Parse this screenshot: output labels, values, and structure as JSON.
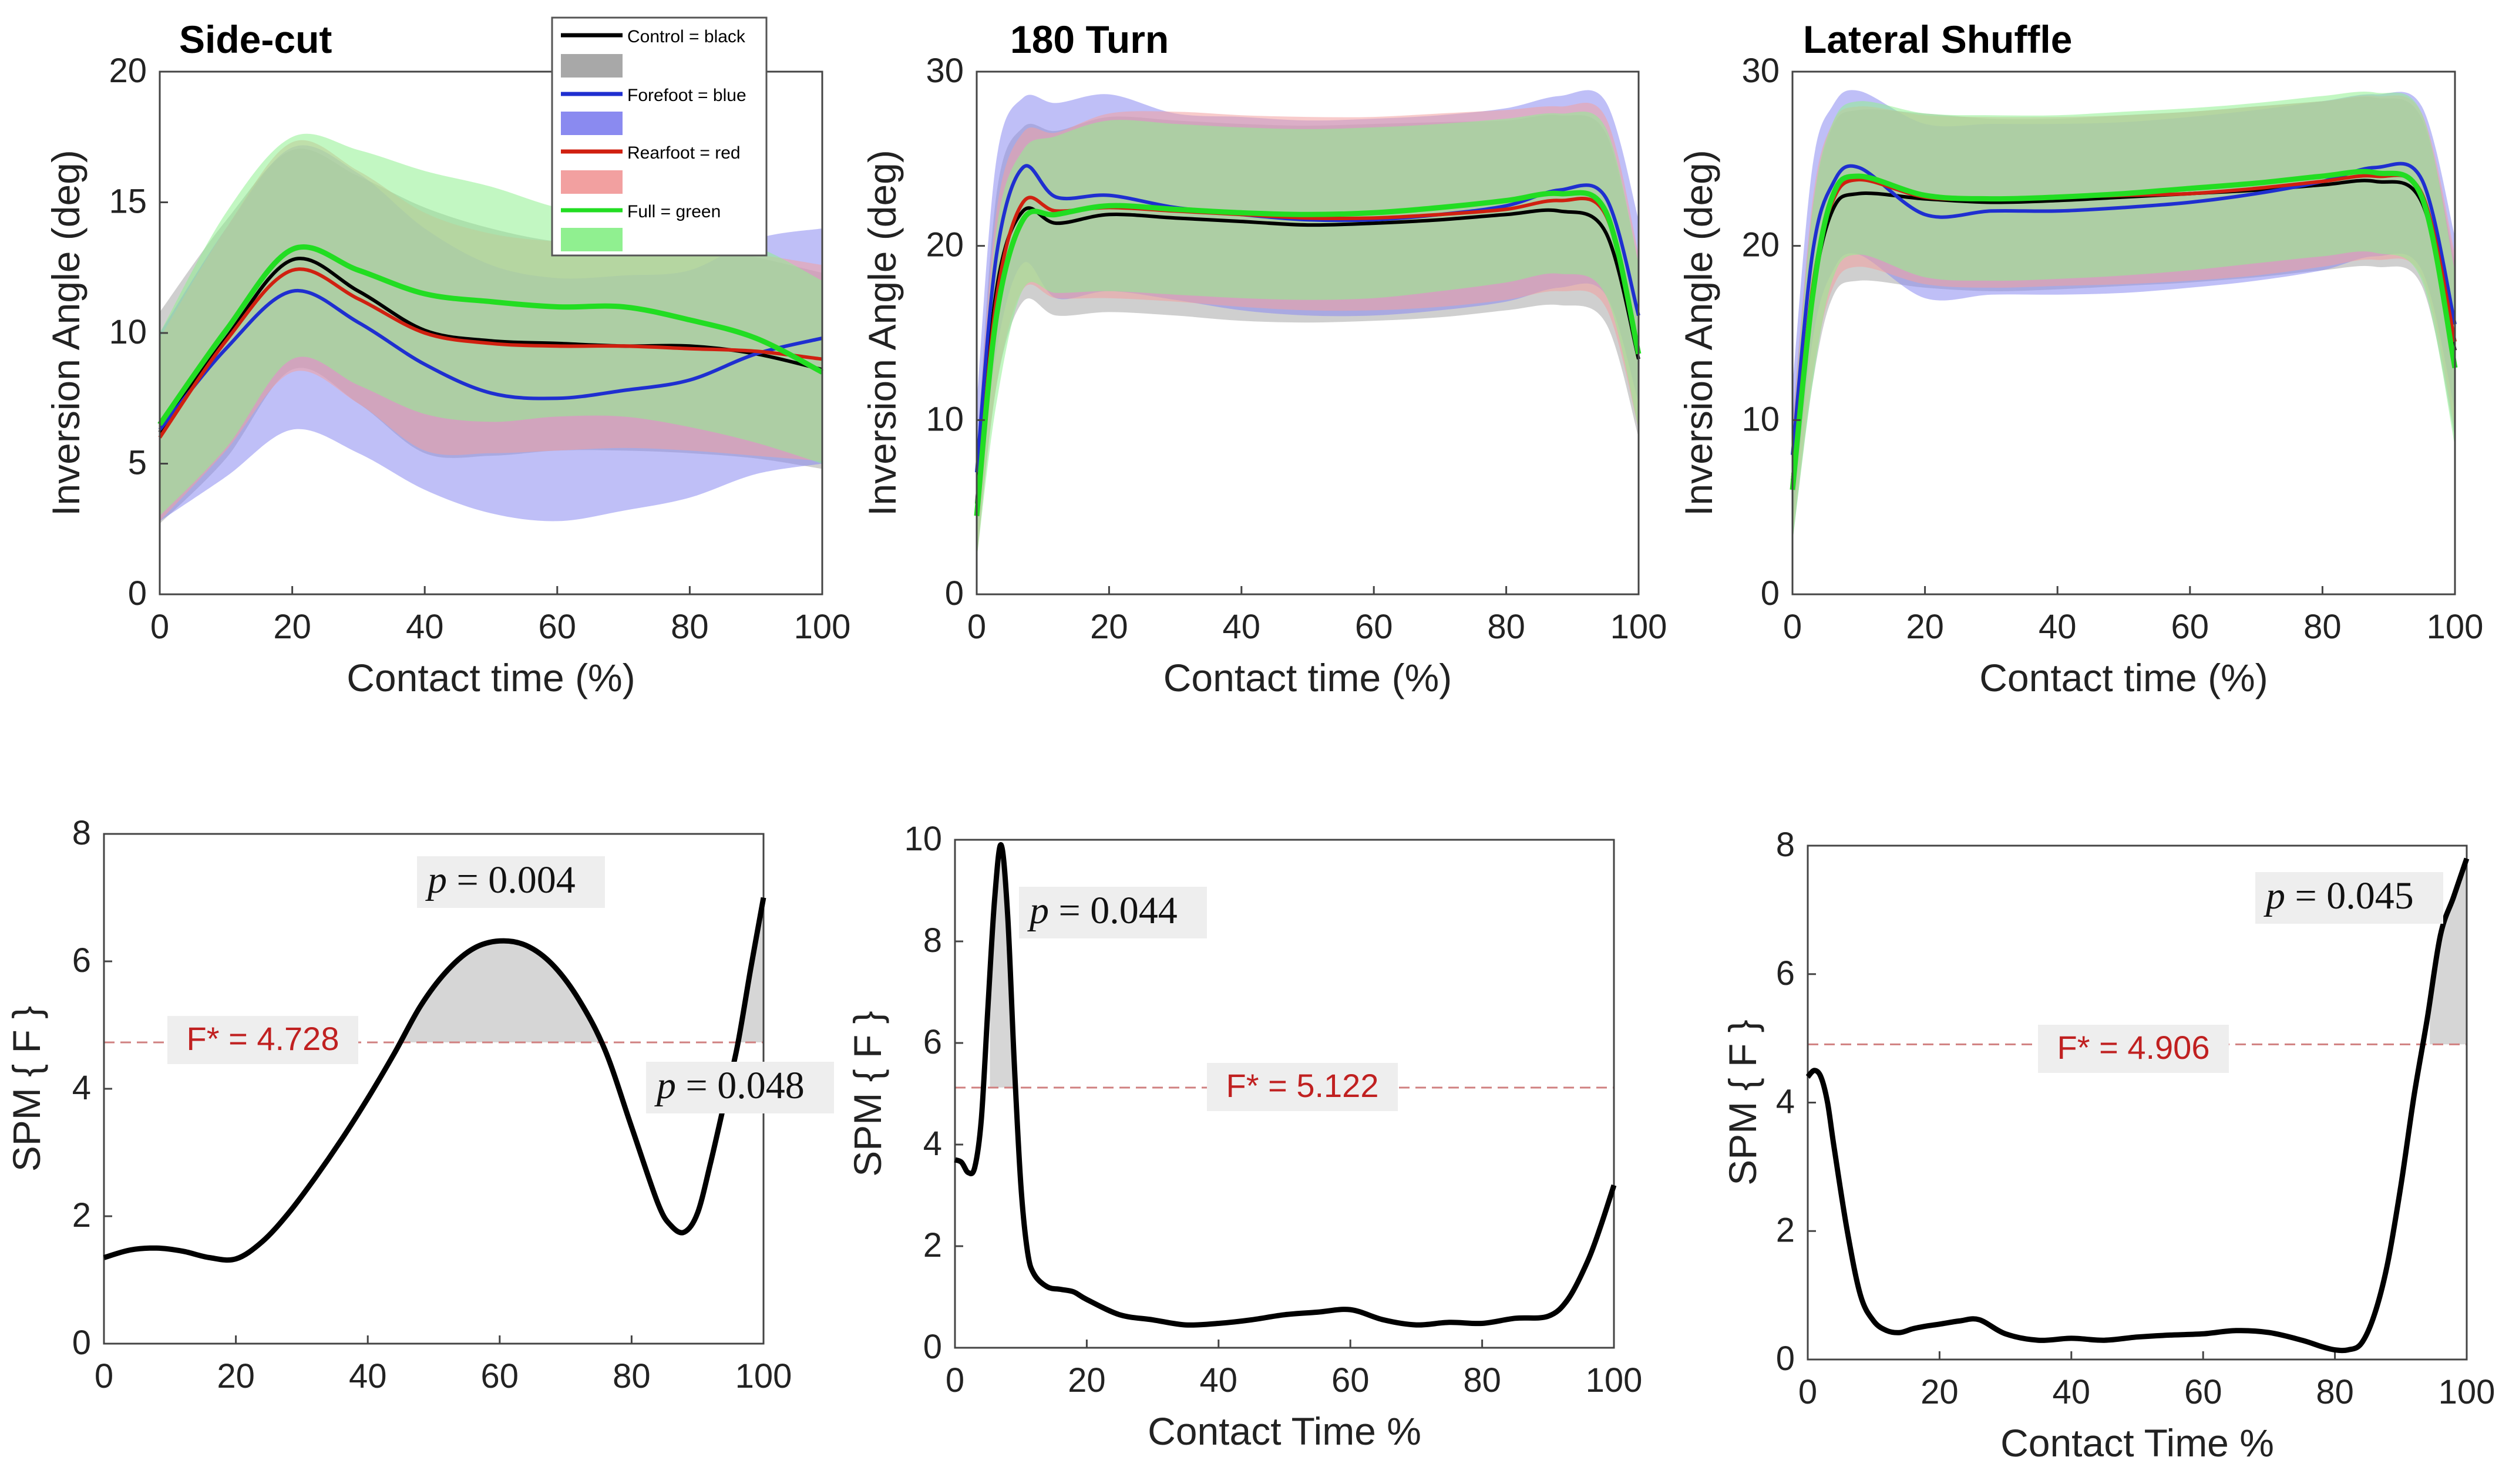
{
  "figure": {
    "panel_label_inversion": "Inversion Angle (deg)",
    "panel_label_contact": "Contact time (%)",
    "spm_ylabel": "SPM { F }",
    "spm_xlabel": "Contact Time %"
  },
  "legend": {
    "entries": [
      {
        "label": "Control = black",
        "line_color": "#000000",
        "band_color": "#a8a8a8"
      },
      {
        "label": "Forefoot = blue",
        "line_color": "#1f2fd0",
        "band_color": "#8a8af0"
      },
      {
        "label": "Rearfoot = red",
        "line_color": "#d02010",
        "band_color": "#f2a0a0"
      },
      {
        "label": "Full = green",
        "line_color": "#22dd22",
        "band_color": "#90f090"
      }
    ]
  },
  "chart_data": [
    {
      "type": "area",
      "id": "sidecut-angle",
      "title": "Side-cut",
      "xlabel": "Contact time (%)",
      "ylabel": "Inversion Angle (deg)",
      "xlim": [
        0,
        100
      ],
      "ylim": [
        0,
        20
      ],
      "xticks": [
        0,
        20,
        40,
        60,
        80,
        100
      ],
      "yticks": [
        0,
        5,
        10,
        15,
        20
      ],
      "x": [
        0,
        10,
        20,
        30,
        40,
        50,
        60,
        70,
        80,
        90,
        100
      ],
      "series": [
        {
          "name": "Control",
          "color": "#000000",
          "band": "#a8a8a8",
          "mean": [
            6.2,
            9.8,
            12.8,
            11.6,
            10.1,
            9.7,
            9.6,
            9.5,
            9.5,
            9.2,
            8.6
          ],
          "upper": [
            10.8,
            14.3,
            17.0,
            16.0,
            14.8,
            14.0,
            13.5,
            13.4,
            13.4,
            12.9,
            12.3
          ],
          "lower": [
            2.7,
            5.2,
            8.6,
            7.3,
            5.4,
            5.3,
            5.5,
            5.5,
            5.4,
            5.2,
            4.8
          ]
        },
        {
          "name": "Forefoot",
          "color": "#1f2fd0",
          "band": "#8a8af0",
          "mean": [
            6.3,
            9.4,
            11.6,
            10.4,
            8.8,
            7.7,
            7.5,
            7.8,
            8.2,
            9.2,
            9.8
          ],
          "upper": [
            10.0,
            14.0,
            17.1,
            16.1,
            14.0,
            12.6,
            12.1,
            12.2,
            12.4,
            13.6,
            14.0
          ],
          "lower": [
            2.8,
            4.5,
            6.3,
            5.4,
            4.0,
            3.1,
            2.8,
            3.2,
            3.7,
            4.6,
            5.0
          ]
        },
        {
          "name": "Rearfoot",
          "color": "#d02010",
          "band": "#f2a0a0",
          "mean": [
            6.0,
            9.7,
            12.4,
            11.3,
            10.0,
            9.6,
            9.5,
            9.5,
            9.4,
            9.3,
            9.0
          ],
          "upper": [
            9.8,
            14.0,
            17.3,
            16.2,
            14.6,
            13.8,
            13.5,
            13.4,
            13.2,
            13.0,
            12.6
          ],
          "lower": [
            2.8,
            5.5,
            8.5,
            7.3,
            5.5,
            5.4,
            5.5,
            5.6,
            5.5,
            5.3,
            5.1
          ]
        },
        {
          "name": "Full",
          "color": "#22dd22",
          "band": "#90f090",
          "mean": [
            6.5,
            10.1,
            13.2,
            12.4,
            11.5,
            11.2,
            11.0,
            11.0,
            10.5,
            9.8,
            8.5
          ],
          "upper": [
            10.0,
            14.6,
            17.5,
            17.0,
            16.2,
            15.6,
            14.8,
            14.4,
            13.8,
            13.3,
            12.0
          ],
          "lower": [
            3.0,
            5.6,
            9.0,
            8.0,
            6.9,
            6.6,
            6.8,
            6.8,
            6.4,
            5.8,
            5.0
          ]
        }
      ]
    },
    {
      "type": "area",
      "id": "turn-angle",
      "title": "180 Turn",
      "xlabel": "Contact time (%)",
      "ylabel": "Inversion Angle (deg)",
      "xlim": [
        0,
        100
      ],
      "ylim": [
        0,
        30
      ],
      "xticks": [
        0,
        20,
        40,
        60,
        80,
        100
      ],
      "yticks": [
        0,
        10,
        20,
        30
      ],
      "x": [
        0,
        3,
        7,
        12,
        20,
        30,
        40,
        50,
        60,
        70,
        80,
        88,
        95,
        100
      ],
      "series": [
        {
          "name": "Control",
          "color": "#000000",
          "band": "#a8a8a8",
          "mean": [
            5.2,
            17.5,
            22.0,
            21.3,
            21.8,
            21.6,
            21.4,
            21.2,
            21.3,
            21.5,
            21.8,
            22.0,
            20.8,
            13.5
          ],
          "upper": [
            8.0,
            23.0,
            26.8,
            26.6,
            27.4,
            27.2,
            27.0,
            26.9,
            27.0,
            27.1,
            27.2,
            27.5,
            26.5,
            19.0
          ],
          "lower": [
            2.0,
            12.0,
            16.8,
            16.0,
            16.2,
            16.0,
            15.7,
            15.6,
            15.7,
            15.9,
            16.3,
            16.6,
            15.6,
            9.0
          ]
        },
        {
          "name": "Forefoot",
          "color": "#1f2fd0",
          "band": "#8a8af0",
          "mean": [
            7.0,
            19.5,
            24.5,
            22.8,
            22.9,
            22.2,
            21.8,
            21.5,
            21.5,
            21.8,
            22.3,
            23.2,
            22.8,
            16.0
          ],
          "upper": [
            11.0,
            25.0,
            28.5,
            28.2,
            28.7,
            27.6,
            27.4,
            27.2,
            27.3,
            27.5,
            27.9,
            28.6,
            28.3,
            21.5
          ],
          "lower": [
            3.5,
            14.0,
            19.0,
            17.0,
            17.4,
            16.9,
            16.3,
            16.0,
            16.0,
            16.3,
            16.8,
            17.6,
            17.2,
            11.0
          ]
        },
        {
          "name": "Rearfoot",
          "color": "#d02010",
          "band": "#f2a0a0",
          "mean": [
            4.8,
            17.0,
            22.5,
            22.0,
            22.2,
            22.0,
            21.8,
            21.6,
            21.6,
            21.8,
            22.1,
            22.6,
            21.8,
            14.0
          ],
          "upper": [
            8.0,
            22.0,
            26.5,
            26.5,
            27.6,
            27.7,
            27.5,
            27.4,
            27.4,
            27.6,
            27.8,
            28.0,
            27.4,
            19.5
          ],
          "lower": [
            2.0,
            12.0,
            17.5,
            17.0,
            17.0,
            16.8,
            16.5,
            16.3,
            16.3,
            16.5,
            16.9,
            17.4,
            16.5,
            9.5
          ]
        },
        {
          "name": "Full",
          "color": "#22dd22",
          "band": "#90f090",
          "mean": [
            4.5,
            16.0,
            21.5,
            21.8,
            22.3,
            22.1,
            21.9,
            21.8,
            21.9,
            22.2,
            22.6,
            23.0,
            22.0,
            13.8
          ],
          "upper": [
            7.5,
            21.0,
            25.5,
            26.3,
            27.2,
            27.0,
            26.8,
            26.7,
            26.8,
            27.0,
            27.3,
            27.6,
            26.8,
            19.0
          ],
          "lower": [
            2.0,
            11.0,
            17.5,
            17.3,
            17.4,
            17.2,
            17.0,
            16.9,
            17.0,
            17.4,
            17.9,
            18.4,
            17.2,
            9.5
          ]
        }
      ]
    },
    {
      "type": "area",
      "id": "shuffle-angle",
      "title": "Lateral Shuffle",
      "xlabel": "Contact time (%)",
      "ylabel": "Inversion Angle (deg)",
      "xlim": [
        0,
        100
      ],
      "ylim": [
        0,
        30
      ],
      "xticks": [
        0,
        20,
        40,
        60,
        80,
        100
      ],
      "yticks": [
        0,
        10,
        20,
        30
      ],
      "x": [
        0,
        3,
        6,
        10,
        20,
        30,
        40,
        50,
        60,
        70,
        80,
        88,
        95,
        100
      ],
      "series": [
        {
          "name": "Control",
          "color": "#000000",
          "band": "#a8a8a8",
          "mean": [
            6.5,
            17.0,
            22.0,
            23.0,
            22.7,
            22.5,
            22.6,
            22.8,
            23.0,
            23.2,
            23.5,
            23.7,
            22.5,
            14.0
          ],
          "upper": [
            10.0,
            22.0,
            26.8,
            27.8,
            27.6,
            27.3,
            27.3,
            27.5,
            27.7,
            28.0,
            28.3,
            28.5,
            27.3,
            19.0
          ],
          "lower": [
            3.0,
            12.0,
            17.0,
            18.0,
            17.6,
            17.4,
            17.5,
            17.7,
            17.9,
            18.2,
            18.6,
            18.8,
            17.7,
            9.0
          ]
        },
        {
          "name": "Forefoot",
          "color": "#1f2fd0",
          "band": "#8a8af0",
          "mean": [
            8.0,
            19.5,
            23.5,
            24.5,
            21.8,
            22.0,
            22.0,
            22.2,
            22.5,
            23.0,
            23.7,
            24.5,
            23.8,
            15.5
          ],
          "upper": [
            12.0,
            24.5,
            28.0,
            28.9,
            27.0,
            27.0,
            27.0,
            27.1,
            27.4,
            27.8,
            28.3,
            28.7,
            28.0,
            20.5
          ],
          "lower": [
            4.0,
            14.5,
            18.5,
            19.5,
            17.0,
            17.2,
            17.2,
            17.3,
            17.6,
            18.0,
            18.6,
            19.4,
            18.6,
            10.5
          ]
        },
        {
          "name": "Rearfoot",
          "color": "#d02010",
          "band": "#f2a0a0",
          "mean": [
            6.5,
            17.5,
            22.5,
            23.8,
            22.8,
            22.7,
            22.8,
            22.9,
            23.0,
            23.3,
            23.7,
            24.0,
            23.0,
            14.5
          ],
          "upper": [
            9.5,
            22.5,
            27.0,
            28.0,
            27.5,
            27.4,
            27.4,
            27.5,
            27.7,
            28.0,
            28.3,
            28.6,
            27.6,
            19.5
          ],
          "lower": [
            3.5,
            12.5,
            17.5,
            18.8,
            17.8,
            17.6,
            17.7,
            17.8,
            18.0,
            18.3,
            18.8,
            19.2,
            18.2,
            9.5
          ]
        },
        {
          "name": "Full",
          "color": "#22dd22",
          "band": "#90f090",
          "mean": [
            6.0,
            17.0,
            22.8,
            24.0,
            22.9,
            22.7,
            22.8,
            23.0,
            23.3,
            23.6,
            24.0,
            24.2,
            22.8,
            13.0
          ],
          "upper": [
            9.0,
            22.0,
            27.0,
            28.3,
            27.6,
            27.5,
            27.5,
            27.7,
            27.9,
            28.2,
            28.6,
            28.8,
            27.6,
            18.5
          ],
          "lower": [
            3.0,
            12.0,
            18.0,
            19.5,
            18.2,
            18.0,
            18.1,
            18.3,
            18.6,
            19.0,
            19.4,
            19.6,
            18.0,
            8.5
          ]
        }
      ]
    },
    {
      "type": "line",
      "id": "sidecut-spm",
      "xlabel": "",
      "ylabel": "SPM { F }",
      "xlim": [
        0,
        100
      ],
      "ylim": [
        0,
        8
      ],
      "xticks": [
        0,
        20,
        40,
        60,
        80,
        100
      ],
      "yticks": [
        0,
        2,
        4,
        6,
        8
      ],
      "threshold": 4.728,
      "threshold_label": "F* = 4.728",
      "x": [
        0,
        4,
        8,
        12,
        16,
        20,
        24,
        28,
        32,
        36,
        40,
        44,
        48,
        52,
        56,
        60,
        64,
        68,
        72,
        76,
        80,
        84,
        86,
        88,
        90,
        92,
        94,
        96,
        98,
        100
      ],
      "values": [
        1.35,
        1.47,
        1.5,
        1.45,
        1.35,
        1.33,
        1.6,
        2.05,
        2.6,
        3.2,
        3.85,
        4.55,
        5.3,
        5.85,
        6.2,
        6.32,
        6.25,
        5.95,
        5.4,
        4.6,
        3.4,
        2.2,
        1.85,
        1.75,
        2.05,
        2.85,
        3.75,
        4.65,
        5.85,
        7.0
      ],
      "clusters": [
        {
          "label": "p = 0.004",
          "x_start": 45.2,
          "x_end": 76.1
        },
        {
          "label": "p = 0.048",
          "x_start": 96.1,
          "x_end": 100
        }
      ]
    },
    {
      "type": "line",
      "id": "turn-spm",
      "xlabel": "Contact Time %",
      "ylabel": "SPM { F }",
      "xlim": [
        0,
        100
      ],
      "ylim": [
        0,
        10
      ],
      "xticks": [
        0,
        20,
        40,
        60,
        80,
        100
      ],
      "yticks": [
        0,
        2,
        4,
        6,
        8,
        10
      ],
      "threshold": 5.122,
      "threshold_label": "F* = 5.122",
      "x": [
        0,
        1,
        2,
        3,
        4,
        5,
        6,
        7,
        8,
        9,
        10,
        11,
        12,
        14,
        16,
        18,
        20,
        25,
        30,
        35,
        40,
        45,
        50,
        55,
        60,
        65,
        70,
        75,
        80,
        85,
        90,
        93,
        96,
        98,
        100
      ],
      "values": [
        3.7,
        3.65,
        3.45,
        3.55,
        4.5,
        6.7,
        8.8,
        9.9,
        8.5,
        5.6,
        3.2,
        1.9,
        1.45,
        1.2,
        1.15,
        1.1,
        0.95,
        0.65,
        0.55,
        0.45,
        0.48,
        0.55,
        0.65,
        0.7,
        0.75,
        0.55,
        0.45,
        0.5,
        0.48,
        0.58,
        0.62,
        0.95,
        1.7,
        2.4,
        3.2
      ],
      "clusters": [
        {
          "label": "p = 0.044",
          "x_start": 5.3,
          "x_end": 8.8
        }
      ]
    },
    {
      "type": "line",
      "id": "shuffle-spm",
      "xlabel": "Contact Time %",
      "ylabel": "SPM { F }",
      "xlim": [
        0,
        100
      ],
      "ylim": [
        0,
        8
      ],
      "xticks": [
        0,
        20,
        40,
        60,
        80,
        100
      ],
      "yticks": [
        0,
        2,
        4,
        6,
        8
      ],
      "threshold": 4.906,
      "threshold_label": "F* = 4.906",
      "x": [
        0,
        1,
        2,
        3,
        4,
        6,
        8,
        10,
        12,
        14,
        16,
        18,
        20,
        23,
        26,
        30,
        35,
        40,
        45,
        50,
        55,
        60,
        65,
        70,
        75,
        78,
        80,
        82,
        84,
        86,
        88,
        90,
        92,
        94,
        96,
        98,
        100
      ],
      "values": [
        4.4,
        4.5,
        4.4,
        4.0,
        3.3,
        2.0,
        1.0,
        0.6,
        0.45,
        0.42,
        0.48,
        0.52,
        0.55,
        0.6,
        0.62,
        0.4,
        0.3,
        0.33,
        0.3,
        0.35,
        0.38,
        0.4,
        0.45,
        0.42,
        0.3,
        0.2,
        0.15,
        0.15,
        0.25,
        0.7,
        1.5,
        2.7,
        4.1,
        5.3,
        6.6,
        7.2,
        7.8
      ],
      "clusters": [
        {
          "label": "p = 0.045",
          "x_start": 94.4,
          "x_end": 100
        }
      ]
    }
  ]
}
